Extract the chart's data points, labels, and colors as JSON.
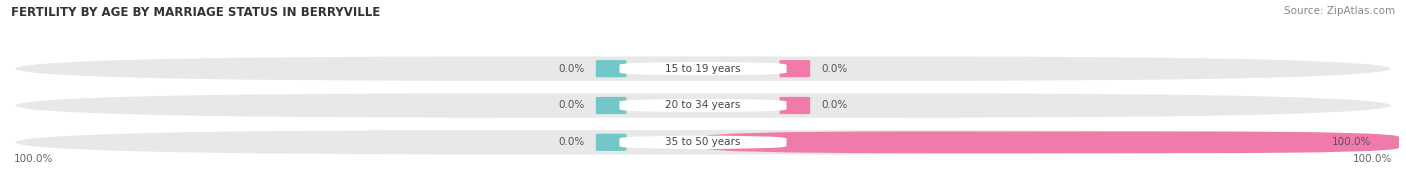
{
  "title": "FERTILITY BY AGE BY MARRIAGE STATUS IN BERRYVILLE",
  "source": "Source: ZipAtlas.com",
  "categories": [
    "15 to 19 years",
    "20 to 34 years",
    "35 to 50 years"
  ],
  "married_values": [
    0.0,
    0.0,
    0.0
  ],
  "unmarried_values": [
    0.0,
    0.0,
    100.0
  ],
  "married_color": "#72c8c8",
  "unmarried_color": "#f07aaa",
  "bar_bg_color": "#e8e8e8",
  "figsize": [
    14.06,
    1.96
  ],
  "dpi": 100,
  "title_fontsize": 8.5,
  "label_fontsize": 7.5,
  "legend_fontsize": 8,
  "source_fontsize": 7.5
}
